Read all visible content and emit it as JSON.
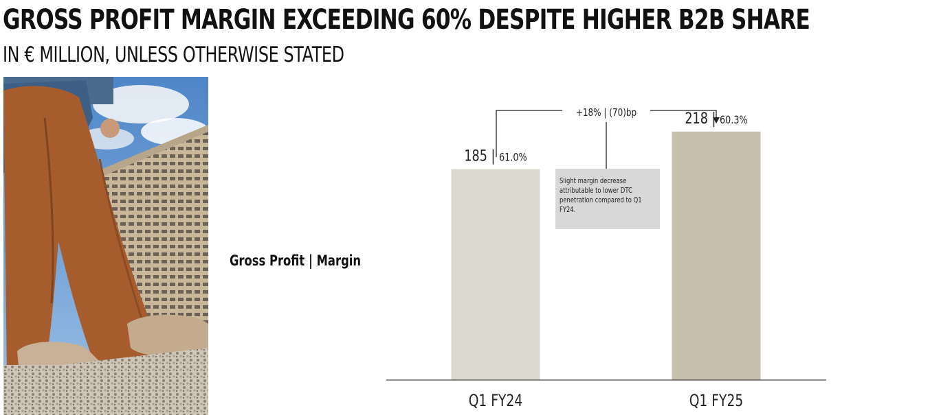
{
  "header": {
    "title": "GROSS PROFIT MARGIN EXCEEDING 60% DESPITE HIGHER B2B SHARE",
    "subtitle": "IN € MILLION, UNLESS OTHERWISE STATED"
  },
  "photo": {
    "icon": "fashion-photo-icon"
  },
  "chart_data": {
    "type": "bar",
    "title": "Gross Profit | Margin",
    "categories": [
      "Q1 FY24",
      "Q1 FY25"
    ],
    "values": [
      185,
      218
    ],
    "margins": [
      "61.0%",
      "60.3%"
    ],
    "ylim": [
      0,
      260
    ],
    "colors": [
      "#dcd9d0",
      "#c8c0ad"
    ],
    "change_annotation": "+18% | (70)bp",
    "note": "Slight margin decrease attributable to lower DTC penetration compared to Q1 FY24.",
    "grid": false
  }
}
